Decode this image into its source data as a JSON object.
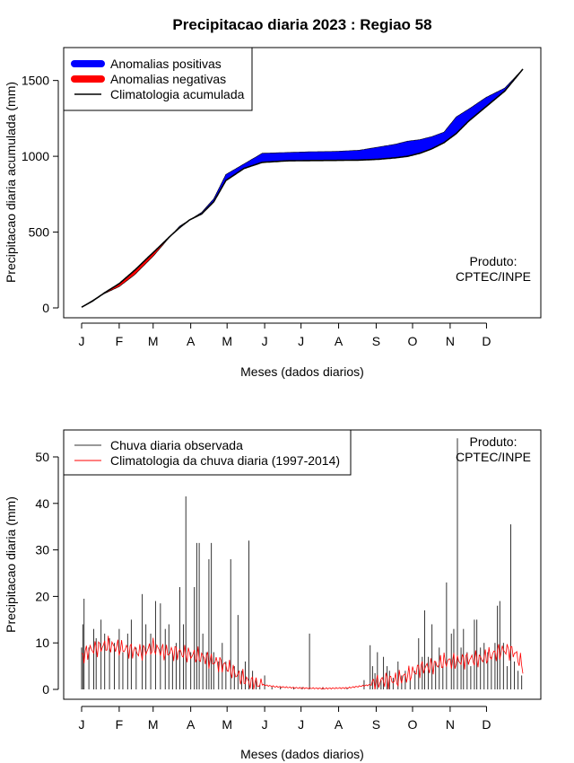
{
  "title": "Precipitacao diaria 2023 : Regiao 58",
  "months": [
    "J",
    "F",
    "M",
    "A",
    "M",
    "J",
    "J",
    "A",
    "S",
    "O",
    "N",
    "D"
  ],
  "chart_data": [
    {
      "type": "area",
      "ylabel": "Precipitacao diaria acumulada (mm)",
      "xlabel": "Meses (dados diarios)",
      "ylim": [
        0,
        1650
      ],
      "yticks": [
        0,
        500,
        1000,
        1500
      ],
      "legend": [
        "Anomalias positivas",
        "Anomalias negativas",
        "Climatologia acumulada"
      ],
      "legend_colors": [
        "#0000ff",
        "#ff0000",
        "#000000"
      ],
      "product_label": [
        "Produto:",
        "CPTEC/INPE"
      ],
      "x_day": [
        1,
        10,
        20,
        32,
        45,
        60,
        75,
        82,
        90,
        100,
        110,
        120,
        135,
        150,
        170,
        190,
        210,
        230,
        245,
        260,
        270,
        280,
        290,
        300,
        310,
        320,
        335,
        350,
        365
      ],
      "climatology": [
        5,
        45,
        100,
        160,
        250,
        365,
        480,
        530,
        580,
        620,
        700,
        840,
        920,
        960,
        970,
        972,
        973,
        975,
        980,
        990,
        1000,
        1020,
        1050,
        1090,
        1150,
        1230,
        1330,
        1430,
        1575
      ],
      "observed": [
        5,
        50,
        95,
        140,
        220,
        340,
        480,
        540,
        580,
        630,
        720,
        880,
        950,
        1020,
        1025,
        1030,
        1032,
        1040,
        1060,
        1080,
        1100,
        1110,
        1130,
        1160,
        1260,
        1310,
        1390,
        1450,
        1575
      ]
    },
    {
      "type": "line",
      "ylabel": "Precipitacao diaria (mm)",
      "xlabel": "Meses (dados diarios)",
      "ylim": [
        0,
        55
      ],
      "yticks": [
        0,
        10,
        20,
        30,
        40,
        50
      ],
      "legend": [
        "Chuva diaria observada",
        "Climatologia da chuva diaria (1997-2014)"
      ],
      "legend_colors": [
        "#333333",
        "#ff0000"
      ],
      "product_label": [
        "Produto:",
        "CPTEC/INPE"
      ],
      "peaks": [
        [
          1,
          9
        ],
        [
          2,
          14
        ],
        [
          3,
          19.5
        ],
        [
          7,
          9
        ],
        [
          11,
          13
        ],
        [
          13,
          11
        ],
        [
          17,
          15
        ],
        [
          20,
          12
        ],
        [
          24,
          11
        ],
        [
          28,
          10
        ],
        [
          32,
          13
        ],
        [
          35,
          8
        ],
        [
          39,
          12
        ],
        [
          42,
          15
        ],
        [
          46,
          9
        ],
        [
          51,
          20.5
        ],
        [
          54,
          14
        ],
        [
          58,
          12
        ],
        [
          62,
          19
        ],
        [
          66,
          18.5
        ],
        [
          70,
          13
        ],
        [
          73,
          14
        ],
        [
          76,
          8
        ],
        [
          79,
          10
        ],
        [
          82,
          22
        ],
        [
          85,
          14
        ],
        [
          87,
          41.5
        ],
        [
          91,
          8
        ],
        [
          94,
          22
        ],
        [
          96,
          31.5
        ],
        [
          98,
          31.5
        ],
        [
          101,
          12
        ],
        [
          104,
          8
        ],
        [
          106,
          28
        ],
        [
          108,
          31.5
        ],
        [
          110,
          8
        ],
        [
          114,
          6
        ],
        [
          117,
          10
        ],
        [
          120,
          6
        ],
        [
          124,
          28
        ],
        [
          127,
          5
        ],
        [
          130,
          16
        ],
        [
          133,
          4
        ],
        [
          136,
          6
        ],
        [
          139,
          32
        ],
        [
          142,
          4
        ],
        [
          145,
          2
        ],
        [
          148,
          1
        ],
        [
          152,
          3
        ],
        [
          158,
          0.5
        ],
        [
          165,
          0.5
        ],
        [
          176,
          0.5
        ],
        [
          183,
          0.5
        ],
        [
          189,
          12
        ],
        [
          200,
          0.5
        ],
        [
          220,
          0.3
        ],
        [
          234,
          2
        ],
        [
          239,
          9.5
        ],
        [
          241,
          5
        ],
        [
          243,
          3.5
        ],
        [
          245,
          8
        ],
        [
          248,
          2
        ],
        [
          250,
          7
        ],
        [
          253,
          5
        ],
        [
          255,
          4
        ],
        [
          258,
          2.5
        ],
        [
          262,
          6
        ],
        [
          265,
          3
        ],
        [
          268,
          4
        ],
        [
          272,
          2
        ],
        [
          276,
          4
        ],
        [
          279,
          11
        ],
        [
          282,
          7
        ],
        [
          284,
          17
        ],
        [
          287,
          7
        ],
        [
          290,
          14
        ],
        [
          293,
          6
        ],
        [
          296,
          9
        ],
        [
          299,
          5
        ],
        [
          302,
          23
        ],
        [
          306,
          12
        ],
        [
          308,
          13
        ],
        [
          311,
          54
        ],
        [
          314,
          9
        ],
        [
          316,
          13
        ],
        [
          319,
          8
        ],
        [
          322,
          5
        ],
        [
          325,
          15
        ],
        [
          327,
          15
        ],
        [
          330,
          9
        ],
        [
          333,
          10
        ],
        [
          336,
          8
        ],
        [
          339,
          7
        ],
        [
          342,
          10
        ],
        [
          344,
          18
        ],
        [
          346,
          19
        ],
        [
          349,
          10
        ],
        [
          352,
          5
        ],
        [
          355,
          35.5
        ],
        [
          358,
          6
        ],
        [
          361,
          4
        ],
        [
          364,
          3
        ]
      ],
      "clim_knots": [
        [
          1,
          7
        ],
        [
          8,
          8.5
        ],
        [
          15,
          9
        ],
        [
          22,
          9.5
        ],
        [
          32,
          9
        ],
        [
          40,
          8.5
        ],
        [
          50,
          8
        ],
        [
          60,
          9
        ],
        [
          70,
          8
        ],
        [
          80,
          8
        ],
        [
          90,
          7.5
        ],
        [
          100,
          7
        ],
        [
          110,
          6
        ],
        [
          120,
          5
        ],
        [
          130,
          3
        ],
        [
          140,
          1.5
        ],
        [
          150,
          1
        ],
        [
          160,
          0.6
        ],
        [
          180,
          0.3
        ],
        [
          200,
          0.2
        ],
        [
          220,
          0.3
        ],
        [
          240,
          1
        ],
        [
          250,
          2
        ],
        [
          260,
          2
        ],
        [
          270,
          3
        ],
        [
          280,
          4.5
        ],
        [
          290,
          5
        ],
        [
          300,
          6
        ],
        [
          310,
          6
        ],
        [
          320,
          6.5
        ],
        [
          330,
          6.5
        ],
        [
          340,
          7.5
        ],
        [
          350,
          8.5
        ],
        [
          358,
          8
        ],
        [
          365,
          5
        ]
      ]
    }
  ]
}
